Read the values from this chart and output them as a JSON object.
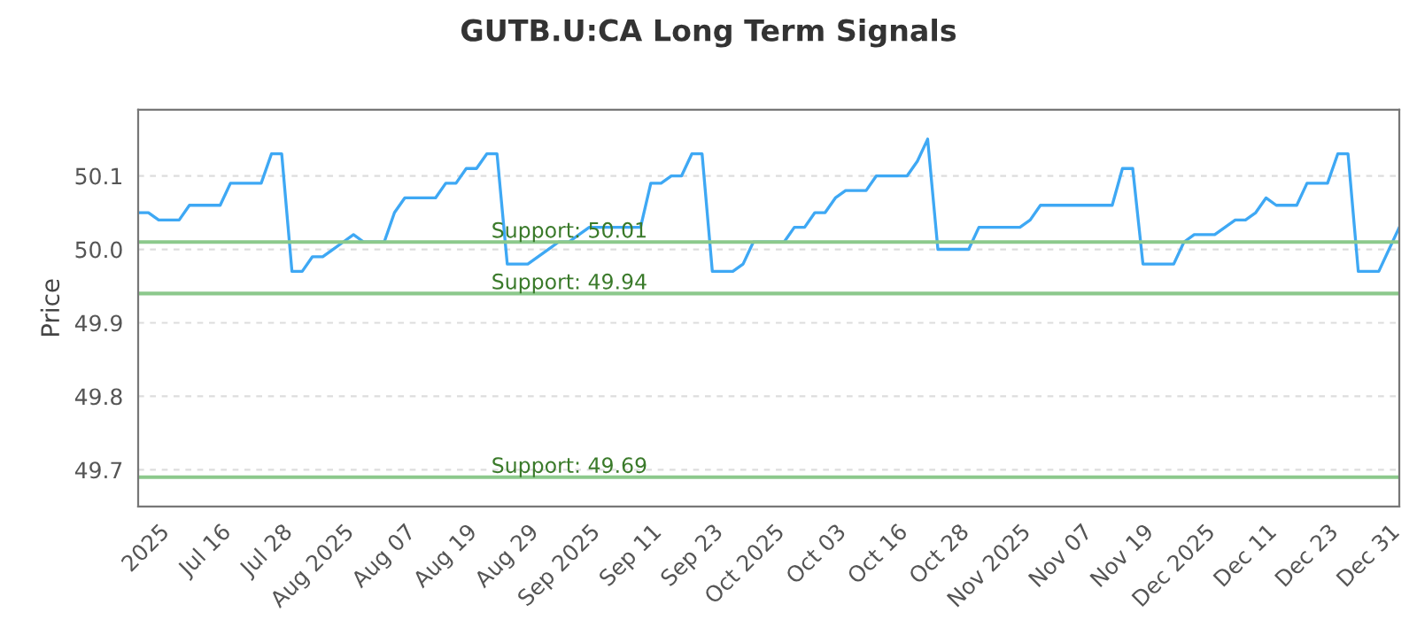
{
  "chart_data": {
    "type": "line",
    "title": "GUTB.U:CA Long Term Signals",
    "ylabel": "Price",
    "categories": [
      null,
      null,
      "2025",
      null,
      null,
      null,
      null,
      null,
      "Jul 16",
      null,
      null,
      null,
      null,
      null,
      "Jul 28",
      null,
      null,
      null,
      null,
      null,
      "Aug 2025",
      null,
      null,
      null,
      null,
      null,
      "Aug 07",
      null,
      null,
      null,
      null,
      null,
      "Aug 19",
      null,
      null,
      null,
      null,
      null,
      "Aug 29",
      null,
      null,
      null,
      null,
      null,
      "Sep 2025",
      null,
      null,
      null,
      null,
      null,
      "Sep 11",
      null,
      null,
      null,
      null,
      null,
      "Sep 23",
      null,
      null,
      null,
      null,
      null,
      "Oct 2025",
      null,
      null,
      null,
      null,
      null,
      "Oct 03",
      null,
      null,
      null,
      null,
      null,
      "Oct 16",
      null,
      null,
      null,
      null,
      null,
      "Oct 28",
      null,
      null,
      null,
      null,
      null,
      "Nov 2025",
      null,
      null,
      null,
      null,
      null,
      "Nov 07",
      null,
      null,
      null,
      null,
      null,
      "Nov 19",
      null,
      null,
      null,
      null,
      null,
      "Dec 2025",
      null,
      null,
      null,
      null,
      null,
      "Dec 11",
      null,
      null,
      null,
      null,
      null,
      "Dec 23",
      null,
      null,
      null,
      null,
      null,
      "Dec 31",
      null
    ],
    "series": [
      {
        "color": "#3ea8f4",
        "values": [
          50.05,
          50.05,
          50.04,
          50.04,
          50.04,
          50.06,
          50.06,
          50.06,
          50.06,
          50.09,
          50.09,
          50.09,
          50.09,
          50.13,
          50.13,
          49.97,
          49.97,
          49.99,
          49.99,
          50.0,
          50.01,
          50.02,
          50.01,
          50.01,
          50.01,
          50.05,
          50.07,
          50.07,
          50.07,
          50.07,
          50.09,
          50.09,
          50.11,
          50.11,
          50.13,
          50.13,
          49.98,
          49.98,
          49.98,
          49.99,
          50.0,
          50.01,
          50.01,
          50.02,
          50.03,
          50.03,
          50.03,
          50.03,
          50.03,
          50.03,
          50.09,
          50.09,
          50.1,
          50.1,
          50.13,
          50.13,
          49.97,
          49.97,
          49.97,
          49.98,
          50.01,
          50.01,
          50.01,
          50.01,
          50.03,
          50.03,
          50.05,
          50.05,
          50.07,
          50.08,
          50.08,
          50.08,
          50.1,
          50.1,
          50.1,
          50.1,
          50.12,
          50.15,
          50.0,
          50.0,
          50.0,
          50.0,
          50.03,
          50.03,
          50.03,
          50.03,
          50.03,
          50.04,
          50.06,
          50.06,
          50.06,
          50.06,
          50.06,
          50.06,
          50.06,
          50.06,
          50.11,
          50.11,
          49.98,
          49.98,
          49.98,
          49.98,
          50.01,
          50.02,
          50.02,
          50.02,
          50.03,
          50.04,
          50.04,
          50.05,
          50.07,
          50.06,
          50.06,
          50.06,
          50.09,
          50.09,
          50.09,
          50.13,
          50.13,
          49.97,
          49.97,
          49.97,
          50.0,
          50.03
        ]
      }
    ],
    "ylim": [
      49.65,
      50.19
    ],
    "yticks": [
      49.7,
      49.8,
      49.9,
      {
        "value": 50,
        "label": "50.0"
      },
      50.1
    ],
    "ref_lines": [
      {
        "axis": "y",
        "value": 50.01,
        "label": "Support: 50.01",
        "color": "#8cc98c"
      },
      {
        "axis": "y",
        "value": 49.94,
        "label": "Support: 49.94",
        "color": "#8cc98c"
      },
      {
        "axis": "y",
        "value": 49.69,
        "label": "Support: 49.69",
        "color": "#8cc98c"
      }
    ],
    "grid": "y",
    "legend": false,
    "marker": "none",
    "line_style": "solid"
  }
}
